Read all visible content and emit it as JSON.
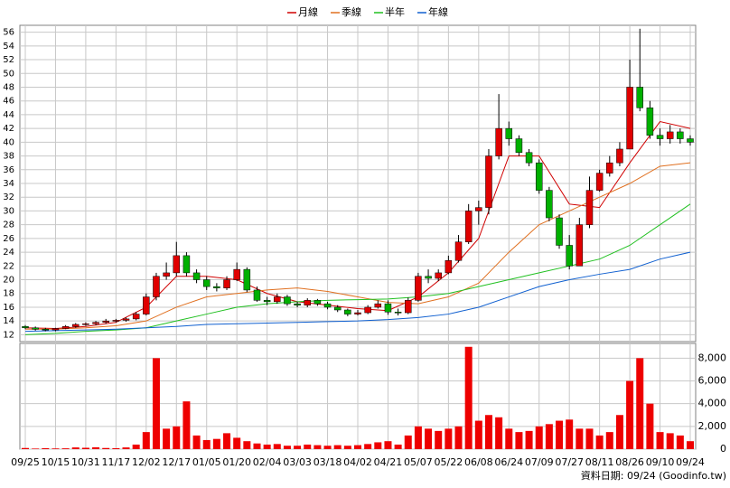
{
  "chart_data": [
    {
      "type": "candlestick",
      "legend": "top",
      "up_color": "#e00000",
      "down_color": "#00b000",
      "open": [
        13.2,
        13,
        12.8,
        12.7,
        12.9,
        13.2,
        13.5,
        13.6,
        13.8,
        14,
        14.1,
        14.3,
        15,
        17.5,
        20.5,
        21,
        23.5,
        21,
        20,
        19,
        18.8,
        20,
        21.5,
        18.5,
        17,
        16.8,
        17.5,
        16.5,
        16.3,
        17,
        16.5,
        16,
        15.6,
        15,
        15.2,
        16,
        16.5,
        15.3,
        15.2,
        17,
        20.5,
        20.2,
        21,
        22.8,
        25.5,
        30,
        30.5,
        38,
        42,
        40.5,
        38.5,
        37,
        33,
        29,
        25,
        22,
        28,
        33,
        35.5,
        37,
        39,
        48,
        45,
        41,
        40.5,
        41.5,
        40.5
      ],
      "high": [
        13.4,
        13.2,
        13,
        13,
        13.4,
        13.7,
        13.8,
        14,
        14.3,
        14.3,
        14.5,
        15.3,
        18,
        21,
        22.5,
        25.5,
        24,
        21.5,
        20.5,
        19.5,
        20.5,
        22.5,
        21.8,
        19,
        17.5,
        18,
        17.8,
        16.8,
        17.3,
        17.2,
        16.8,
        16.3,
        15.8,
        15.6,
        16.3,
        17,
        17,
        15.8,
        17.4,
        21,
        21.5,
        21.5,
        23.5,
        26.5,
        31,
        31.5,
        39,
        47,
        43,
        41,
        39,
        37.5,
        33.5,
        29.5,
        26.5,
        29,
        35,
        36,
        38,
        40,
        52,
        56.5,
        46,
        42,
        42.5,
        42,
        41
      ],
      "low": [
        12.8,
        12.6,
        12.5,
        12.5,
        12.8,
        13,
        13.3,
        13.4,
        13.6,
        13.8,
        13.9,
        14.1,
        14.8,
        17,
        20,
        20.5,
        20.5,
        19.5,
        18.5,
        18.3,
        18.5,
        19.8,
        18.2,
        16.8,
        16.3,
        16.5,
        16.2,
        16,
        16,
        16.2,
        15.7,
        15.3,
        14.7,
        14.8,
        15,
        15.8,
        14.9,
        14.8,
        15,
        16.8,
        19.5,
        19.8,
        20.8,
        22.5,
        25.2,
        28,
        29.5,
        37.5,
        39.5,
        38,
        36.5,
        32.5,
        28.5,
        24.5,
        21.5,
        22,
        27.5,
        32.8,
        35,
        36.5,
        39,
        44.5,
        40.5,
        39.5,
        39.8,
        39.8,
        39.5
      ],
      "close": [
        13,
        12.8,
        12.7,
        12.9,
        13.2,
        13.5,
        13.6,
        13.8,
        14,
        14.1,
        14.3,
        15,
        17.5,
        20.5,
        21,
        23.5,
        21,
        20,
        19,
        18.8,
        20,
        21.5,
        18.5,
        17,
        16.8,
        17.5,
        16.5,
        16.3,
        17,
        16.5,
        16,
        15.6,
        15,
        15.2,
        16,
        16.5,
        15.3,
        15.2,
        17,
        20.5,
        20.2,
        21,
        22.8,
        25.5,
        30,
        30.5,
        38,
        42,
        40.5,
        38.5,
        37,
        33,
        29,
        25,
        22,
        28,
        33,
        35.5,
        37,
        39,
        48,
        45,
        41,
        40.5,
        41.5,
        40.5,
        40
      ],
      "series": [
        {
          "name": "月線",
          "color": "#d00000",
          "x": [
            0,
            3,
            6,
            9,
            12,
            15,
            18,
            21,
            24,
            27,
            30,
            33,
            36,
            39,
            42,
            45,
            48,
            51,
            54,
            57,
            60,
            63,
            66
          ],
          "values": [
            13,
            12.9,
            13.2,
            13.8,
            16,
            20.5,
            20.5,
            20,
            18,
            16.8,
            16.3,
            15.8,
            15.5,
            17.5,
            21,
            26,
            38,
            38,
            31,
            30.5,
            37,
            43,
            42
          ]
        },
        {
          "name": "季線",
          "color": "#e07020",
          "x": [
            0,
            3,
            6,
            9,
            12,
            15,
            18,
            21,
            24,
            27,
            30,
            33,
            36,
            39,
            42,
            45,
            48,
            51,
            54,
            57,
            60,
            63,
            66
          ],
          "values": [
            12.8,
            12.8,
            13,
            13.3,
            14,
            16,
            17.5,
            18,
            18.5,
            18.8,
            18.3,
            17.5,
            16.7,
            16.5,
            17.5,
            19.5,
            24,
            28,
            30,
            32,
            34,
            36.5,
            37
          ]
        },
        {
          "name": "半年",
          "color": "#20c020",
          "x": [
            0,
            3,
            6,
            9,
            12,
            15,
            18,
            21,
            24,
            27,
            30,
            33,
            36,
            39,
            42,
            45,
            48,
            51,
            54,
            57,
            60,
            63,
            66
          ],
          "values": [
            12,
            12.2,
            12.5,
            12.7,
            13,
            14,
            15,
            16,
            16.5,
            16.8,
            17,
            17.1,
            17.2,
            17.5,
            18,
            19,
            20,
            21,
            22,
            23,
            25,
            28,
            31
          ]
        },
        {
          "name": "年線",
          "color": "#1060d0",
          "x": [
            0,
            3,
            6,
            9,
            12,
            15,
            18,
            21,
            24,
            27,
            30,
            33,
            36,
            39,
            42,
            45,
            48,
            51,
            54,
            57,
            60,
            63,
            66
          ],
          "values": [
            12.5,
            12.6,
            12.7,
            12.8,
            13,
            13.2,
            13.5,
            13.6,
            13.7,
            13.8,
            13.9,
            14,
            14.2,
            14.5,
            15,
            16,
            17.5,
            19,
            20,
            20.8,
            21.5,
            23,
            24
          ]
        }
      ],
      "ylim": [
        11,
        57
      ],
      "yticks": [
        12,
        14,
        16,
        18,
        20,
        22,
        24,
        26,
        28,
        30,
        32,
        34,
        36,
        38,
        40,
        42,
        44,
        46,
        48,
        50,
        52,
        54,
        56
      ],
      "grid": true
    },
    {
      "type": "bar",
      "color": "#ee0000",
      "categories": [
        "09/25",
        null,
        null,
        "10/15",
        null,
        null,
        "10/31",
        null,
        null,
        "11/17",
        null,
        null,
        "12/02",
        null,
        null,
        "12/17",
        null,
        null,
        "01/05",
        null,
        null,
        "01/20",
        null,
        null,
        "02/04",
        null,
        null,
        "03/03",
        null,
        null,
        "03/18",
        null,
        null,
        "04/02",
        null,
        null,
        "04/21",
        null,
        null,
        "05/07",
        null,
        null,
        "05/22",
        null,
        null,
        "06/08",
        null,
        null,
        "06/24",
        null,
        null,
        "07/09",
        null,
        null,
        "07/27",
        null,
        null,
        "08/11",
        null,
        null,
        "08/26",
        null,
        null,
        "09/10",
        null,
        null,
        "09/24"
      ],
      "values": [
        100,
        50,
        80,
        60,
        70,
        150,
        120,
        160,
        100,
        80,
        150,
        400,
        1500,
        8000,
        1800,
        2000,
        4200,
        1200,
        800,
        900,
        1400,
        1000,
        700,
        500,
        400,
        450,
        300,
        300,
        400,
        350,
        300,
        350,
        300,
        350,
        450,
        600,
        700,
        400,
        1200,
        2000,
        1800,
        1600,
        1800,
        2000,
        9000,
        2500,
        3000,
        2800,
        1800,
        1500,
        1600,
        2000,
        2200,
        2500,
        2600,
        1800,
        1800,
        1200,
        1500,
        3000,
        6000,
        8000,
        4000,
        1500,
        1400,
        1200,
        700
      ],
      "ylim": [
        0,
        9300
      ],
      "yticks": [
        0,
        {
          "value": 2000,
          "label": "2,000"
        },
        {
          "value": 4000,
          "label": "4,000"
        },
        {
          "value": 6000,
          "label": "6,000"
        },
        {
          "value": 8000,
          "label": "8,000"
        }
      ],
      "grid": true,
      "footnote": "資料日期: 09/24 (Goodinfo.tw)"
    }
  ]
}
